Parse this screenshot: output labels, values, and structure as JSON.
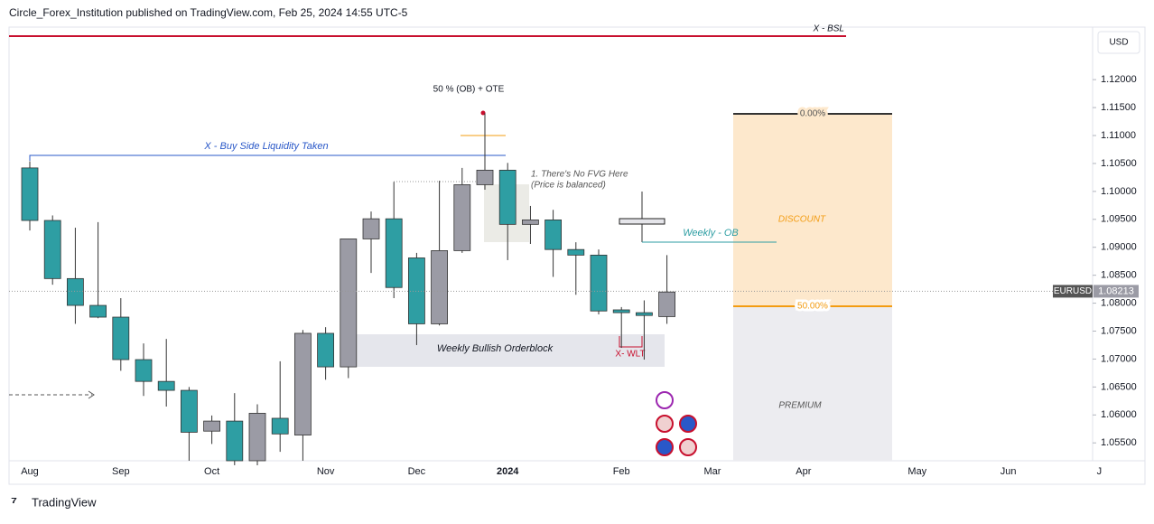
{
  "header": {
    "publisher": "Circle_Forex_Institution published on TradingView.com, Feb 25, 2024 14:55 UTC-5"
  },
  "footer": {
    "brand": "TradingView"
  },
  "chart_data": {
    "type": "candlestick",
    "symbol": "EURUSD",
    "currency": "USD",
    "last_price": {
      "value": 1.08213,
      "label": "1.08213"
    },
    "up_color": "#9b9ba5",
    "down_color": "#2e9ea3",
    "categories": [
      "Aug",
      null,
      null,
      null,
      "Sep",
      null,
      null,
      null,
      "Oct",
      null,
      null,
      null,
      null,
      "Nov",
      null,
      null,
      null,
      "Dec",
      null,
      null,
      null,
      "2024",
      null,
      null,
      null,
      null,
      "Feb",
      null,
      null,
      null,
      "Mar",
      null,
      null,
      null,
      "Apr",
      null,
      null,
      null,
      null,
      "May",
      null,
      null,
      null,
      "Jun",
      null,
      null,
      null,
      "J"
    ],
    "open": [
      1.1042,
      1.0948,
      1.0844,
      1.0796,
      1.0775,
      1.0699,
      1.066,
      1.0644,
      1.0571,
      1.0589,
      1.0518,
      1.0594,
      1.0564,
      1.0746,
      1.0686,
      1.0915,
      1.0951,
      1.0881,
      1.0763,
      1.0894,
      1.1012,
      1.1038,
      1.0941,
      1.0949,
      1.0896,
      1.0886,
      1.0788,
      1.0783,
      1.0776,
      null,
      null,
      null,
      null,
      null,
      null,
      null,
      null,
      null,
      null,
      null,
      null,
      null,
      null,
      null,
      null,
      null,
      null,
      null
    ],
    "high": [
      1.1054,
      1.0957,
      1.0935,
      1.0945,
      1.0809,
      1.0728,
      1.0736,
      1.065,
      1.0599,
      1.0639,
      1.0619,
      1.0696,
      1.0752,
      1.0757,
      1.0915,
      1.0964,
      1.1017,
      1.089,
      1.1019,
      1.1042,
      1.114,
      1.1051,
      1.0974,
      1.0967,
      1.0909,
      1.0896,
      1.0793,
      1.0805,
      1.0886,
      null,
      null,
      null,
      null,
      null,
      null,
      null,
      null,
      null,
      null,
      null,
      null,
      null,
      null,
      null,
      null,
      null,
      null,
      null
    ],
    "low": [
      1.093,
      1.0833,
      1.0763,
      1.0773,
      1.0679,
      1.0634,
      1.0615,
      1.0518,
      1.0548,
      1.051,
      1.051,
      1.0534,
      1.0518,
      1.0663,
      1.0666,
      1.0854,
      1.0809,
      1.0725,
      1.076,
      1.089,
      1.1003,
      1.0877,
      1.0906,
      1.0847,
      1.0815,
      1.078,
      1.072,
      1.0699,
      1.0763,
      null,
      null,
      null,
      null,
      null,
      null,
      null,
      null,
      null,
      null,
      null,
      null,
      null,
      null,
      null,
      null,
      null,
      null,
      null
    ],
    "close": [
      1.0948,
      1.0844,
      1.0796,
      1.0775,
      1.0699,
      1.066,
      1.0644,
      1.0569,
      1.0589,
      1.0518,
      1.0603,
      1.0566,
      1.0746,
      1.0686,
      1.0915,
      1.0951,
      1.0828,
      1.0763,
      1.0894,
      1.1012,
      1.1038,
      1.0941,
      1.0949,
      1.0896,
      1.0886,
      1.0786,
      1.0783,
      1.0778,
      1.082,
      null,
      null,
      null,
      null,
      null,
      null,
      null,
      null,
      null,
      null,
      null,
      null,
      null,
      null,
      null,
      null,
      null,
      null,
      null
    ],
    "ylim": [
      1.0518,
      1.1294
    ],
    "yticks": [
      {
        "value": 1.055,
        "label": "1.05500"
      },
      {
        "value": 1.06,
        "label": "1.06000"
      },
      {
        "value": 1.065,
        "label": "1.06500"
      },
      {
        "value": 1.07,
        "label": "1.07000"
      },
      {
        "value": 1.075,
        "label": "1.07500"
      },
      {
        "value": 1.08,
        "label": "1.08000"
      },
      {
        "value": 1.085,
        "label": "1.08500"
      },
      {
        "value": 1.09,
        "label": "1.09000"
      },
      {
        "value": 1.095,
        "label": "1.09500"
      },
      {
        "value": 1.1,
        "label": "1.10000"
      },
      {
        "value": 1.105,
        "label": "1.10500"
      },
      {
        "value": 1.11,
        "label": "1.11000"
      },
      {
        "value": 1.115,
        "label": "1.11500"
      },
      {
        "value": 1.12,
        "label": "1.12000"
      }
    ],
    "annotations": {
      "bsl": "X - BSL",
      "bsl_taken": "X - Buy Side Liquidity Taken",
      "ote": "50 % (OB) + OTE",
      "fvg_1": "1. There's No FVG Here",
      "fvg_2": "(Price is balanced)",
      "weekly_ob": "Weekly - OB",
      "orderblock": "Weekly Bullish Orderblock",
      "wlt": "X- WLT",
      "fib_0": "0.00%",
      "fib_50": "50.00%",
      "discount": "DISCOUNT",
      "premium": "PREMIUM"
    }
  }
}
